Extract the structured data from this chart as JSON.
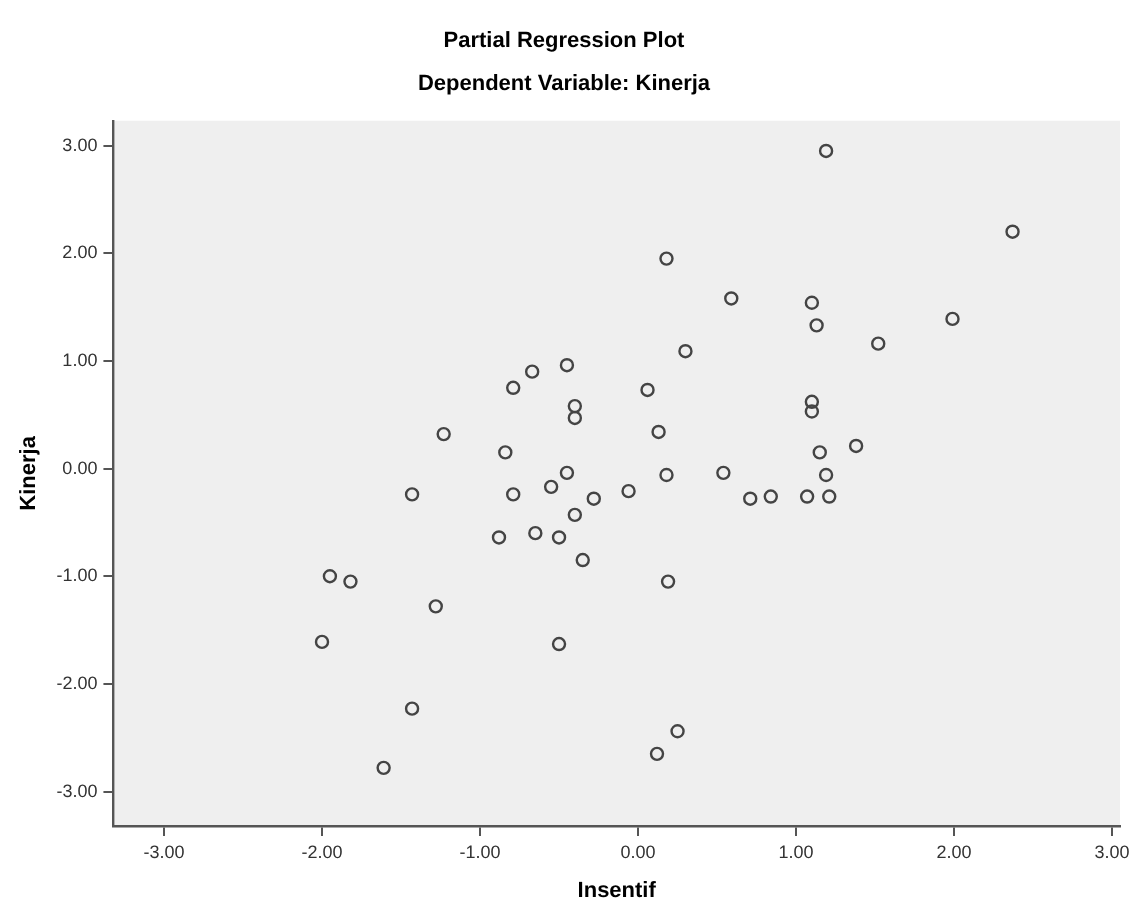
{
  "chart_data": {
    "type": "scatter",
    "title": "Partial Regression Plot",
    "subtitle": "Dependent Variable: Kinerja",
    "xlabel": "Insentif",
    "ylabel": "Kinerja",
    "series": [
      {
        "color": "#444444",
        "x": [
          1.19,
          2.37,
          0.18,
          0.59,
          1.1,
          1.13,
          1.99,
          1.52,
          0.3,
          -0.45,
          0.06,
          -0.4,
          -0.4,
          1.1,
          1.1,
          0.13,
          1.15,
          1.38,
          -0.45,
          0.18,
          0.54,
          1.19,
          -0.55,
          -0.28,
          -0.06,
          0.71,
          0.84,
          1.07,
          1.21,
          -0.4,
          -0.5,
          -0.35,
          -0.67,
          -0.79,
          -1.23,
          -0.84,
          -1.43,
          -0.79,
          -0.88,
          -0.65,
          -1.95,
          -1.82,
          -1.28,
          -2.0,
          -0.5,
          -1.43,
          -1.61,
          0.19,
          0.25,
          0.12
        ],
        "values": [
          2.95,
          2.2,
          1.95,
          1.58,
          1.54,
          1.33,
          1.39,
          1.16,
          1.09,
          0.96,
          0.73,
          0.58,
          0.47,
          0.62,
          0.53,
          0.34,
          0.15,
          0.21,
          -0.04,
          -0.06,
          -0.04,
          -0.06,
          -0.17,
          -0.28,
          -0.21,
          -0.28,
          -0.26,
          -0.26,
          -0.26,
          -0.43,
          -0.64,
          -0.85,
          0.9,
          0.75,
          0.32,
          0.15,
          -0.24,
          -0.24,
          -0.64,
          -0.6,
          -1.0,
          -1.05,
          -1.28,
          -1.61,
          -1.63,
          -2.23,
          -2.78,
          -1.05,
          -2.44,
          -2.65
        ]
      }
    ],
    "xlim": [
      -3.32,
      3.05
    ],
    "ylim": [
      -3.32,
      3.23
    ],
    "xticks": [
      {
        "value": -3,
        "label": "-3.00"
      },
      {
        "value": -2,
        "label": "-2.00"
      },
      {
        "value": -1,
        "label": "-1.00"
      },
      {
        "value": 0,
        "label": "0.00"
      },
      {
        "value": 1,
        "label": "1.00"
      },
      {
        "value": 2,
        "label": "2.00"
      },
      {
        "value": 3,
        "label": "3.00"
      }
    ],
    "yticks": [
      {
        "value": -3,
        "label": "-3.00"
      },
      {
        "value": -2,
        "label": "-2.00"
      },
      {
        "value": -1,
        "label": "-1.00"
      },
      {
        "value": 0,
        "label": "0.00"
      },
      {
        "value": 1,
        "label": "1.00"
      },
      {
        "value": 2,
        "label": "2.00"
      },
      {
        "value": 3,
        "label": "3.00"
      }
    ],
    "marker": "circle",
    "grid": false,
    "legend": false
  }
}
